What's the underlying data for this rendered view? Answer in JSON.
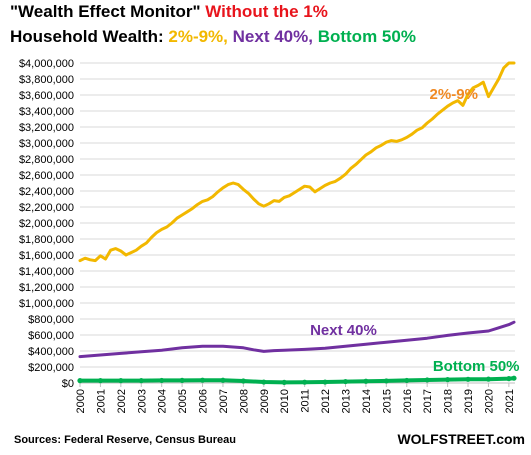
{
  "title": {
    "line1_main": "\"Wealth Effect Monitor\"",
    "line1_accent": "Without the 1%",
    "line2_prefix": "Household Wealth:",
    "line2_s1": "2%-9%,",
    "line2_s2": "Next 40%,",
    "line2_s3": "Bottom 50%"
  },
  "footer": {
    "source": "Sources: Federal Reserve, Census Bureau",
    "brand": "WOLFSTREET.com"
  },
  "chart_data": {
    "type": "line",
    "xlabel": "",
    "ylabel": "",
    "xlim": [
      2000,
      2021.3
    ],
    "ylim": [
      0,
      4000000
    ],
    "y_ticks": [
      0,
      200000,
      400000,
      600000,
      800000,
      1000000,
      1200000,
      1400000,
      1600000,
      1800000,
      2000000,
      2200000,
      2400000,
      2600000,
      2800000,
      3000000,
      3200000,
      3400000,
      3600000,
      3800000,
      4000000
    ],
    "y_tick_labels": [
      "$0",
      "$200,000",
      "$400,000",
      "$600,000",
      "$800,000",
      "$1,000,000",
      "$1,200,000",
      "$1,400,000",
      "$1,600,000",
      "$1,800,000",
      "$2,000,000",
      "$2,200,000",
      "$2,400,000",
      "$2,600,000",
      "$2,800,000",
      "$3,000,000",
      "$3,200,000",
      "$3,400,000",
      "$3,600,000",
      "$3,800,000",
      "$4,000,000"
    ],
    "x_tick_labels": [
      "2000",
      "2001",
      "2002",
      "2003",
      "2004",
      "2005",
      "2006",
      "2007",
      "2008",
      "2009",
      "2010",
      "2011",
      "2012",
      "2013",
      "2014",
      "2015",
      "2016",
      "2017",
      "2018",
      "2019",
      "2020",
      "2021"
    ],
    "grid": true,
    "series": [
      {
        "name": "2%-9%",
        "color": "#f2b800",
        "x": [
          2000,
          2000.25,
          2000.5,
          2000.75,
          2001,
          2001.25,
          2001.5,
          2001.75,
          2002,
          2002.25,
          2002.5,
          2002.75,
          2003,
          2003.25,
          2003.5,
          2003.75,
          2004,
          2004.25,
          2004.5,
          2004.75,
          2005,
          2005.25,
          2005.5,
          2005.75,
          2006,
          2006.25,
          2006.5,
          2006.75,
          2007,
          2007.25,
          2007.5,
          2007.75,
          2008,
          2008.25,
          2008.5,
          2008.75,
          2009,
          2009.25,
          2009.5,
          2009.75,
          2010,
          2010.25,
          2010.5,
          2010.75,
          2011,
          2011.25,
          2011.5,
          2011.75,
          2012,
          2012.25,
          2012.5,
          2012.75,
          2013,
          2013.25,
          2013.5,
          2013.75,
          2014,
          2014.25,
          2014.5,
          2014.75,
          2015,
          2015.25,
          2015.5,
          2015.75,
          2016,
          2016.25,
          2016.5,
          2016.75,
          2017,
          2017.25,
          2017.5,
          2017.75,
          2018,
          2018.25,
          2018.5,
          2018.75,
          2019,
          2019.25,
          2019.5,
          2019.75,
          2020,
          2020.25,
          2020.5,
          2020.75,
          2021,
          2021.25
        ],
        "values": [
          1530000,
          1560000,
          1540000,
          1530000,
          1590000,
          1550000,
          1660000,
          1680000,
          1650000,
          1600000,
          1630000,
          1660000,
          1710000,
          1750000,
          1820000,
          1880000,
          1920000,
          1950000,
          2000000,
          2060000,
          2100000,
          2140000,
          2180000,
          2230000,
          2270000,
          2290000,
          2330000,
          2390000,
          2440000,
          2480000,
          2500000,
          2480000,
          2420000,
          2370000,
          2300000,
          2240000,
          2210000,
          2240000,
          2280000,
          2270000,
          2320000,
          2340000,
          2380000,
          2420000,
          2460000,
          2450000,
          2390000,
          2430000,
          2470000,
          2500000,
          2520000,
          2560000,
          2610000,
          2680000,
          2730000,
          2790000,
          2850000,
          2890000,
          2940000,
          2970000,
          3010000,
          3030000,
          3020000,
          3040000,
          3070000,
          3110000,
          3160000,
          3190000,
          3250000,
          3300000,
          3360000,
          3410000,
          3460000,
          3500000,
          3530000,
          3470000,
          3610000,
          3690000,
          3720000,
          3760000,
          3580000,
          3690000,
          3800000,
          3940000,
          4000000,
          4000000
        ]
      },
      {
        "name": "Next 40%",
        "color": "#7030a0",
        "x": [
          2000,
          2001,
          2002,
          2003,
          2004,
          2005,
          2006,
          2007,
          2008,
          2008.5,
          2009,
          2009.5,
          2010,
          2011,
          2012,
          2013,
          2014,
          2015,
          2016,
          2017,
          2018,
          2019,
          2020,
          2020.5,
          2021,
          2021.25
        ],
        "values": [
          330000,
          350000,
          370000,
          390000,
          410000,
          440000,
          460000,
          460000,
          440000,
          415000,
          395000,
          405000,
          410000,
          420000,
          435000,
          460000,
          485000,
          510000,
          535000,
          560000,
          595000,
          625000,
          650000,
          690000,
          730000,
          760000
        ]
      },
      {
        "name": "Bottom 50%",
        "color": "#00b050",
        "x": [
          2000,
          2001,
          2002,
          2003,
          2004,
          2005,
          2006,
          2007,
          2008,
          2009,
          2010,
          2011,
          2012,
          2013,
          2014,
          2015,
          2016,
          2017,
          2018,
          2019,
          2020,
          2021,
          2021.25
        ],
        "values": [
          30000,
          30000,
          30000,
          30000,
          32000,
          33000,
          35000,
          34000,
          25000,
          12000,
          8000,
          10000,
          12000,
          18000,
          22000,
          26000,
          32000,
          38000,
          42000,
          46000,
          48000,
          55000,
          60000
        ]
      }
    ],
    "annotations": [
      {
        "series": "2%-9%",
        "text": "2%-9%"
      },
      {
        "series": "Next 40%",
        "text": "Next 40%"
      },
      {
        "series": "Bottom 50%",
        "text": "Bottom 50%"
      }
    ]
  }
}
